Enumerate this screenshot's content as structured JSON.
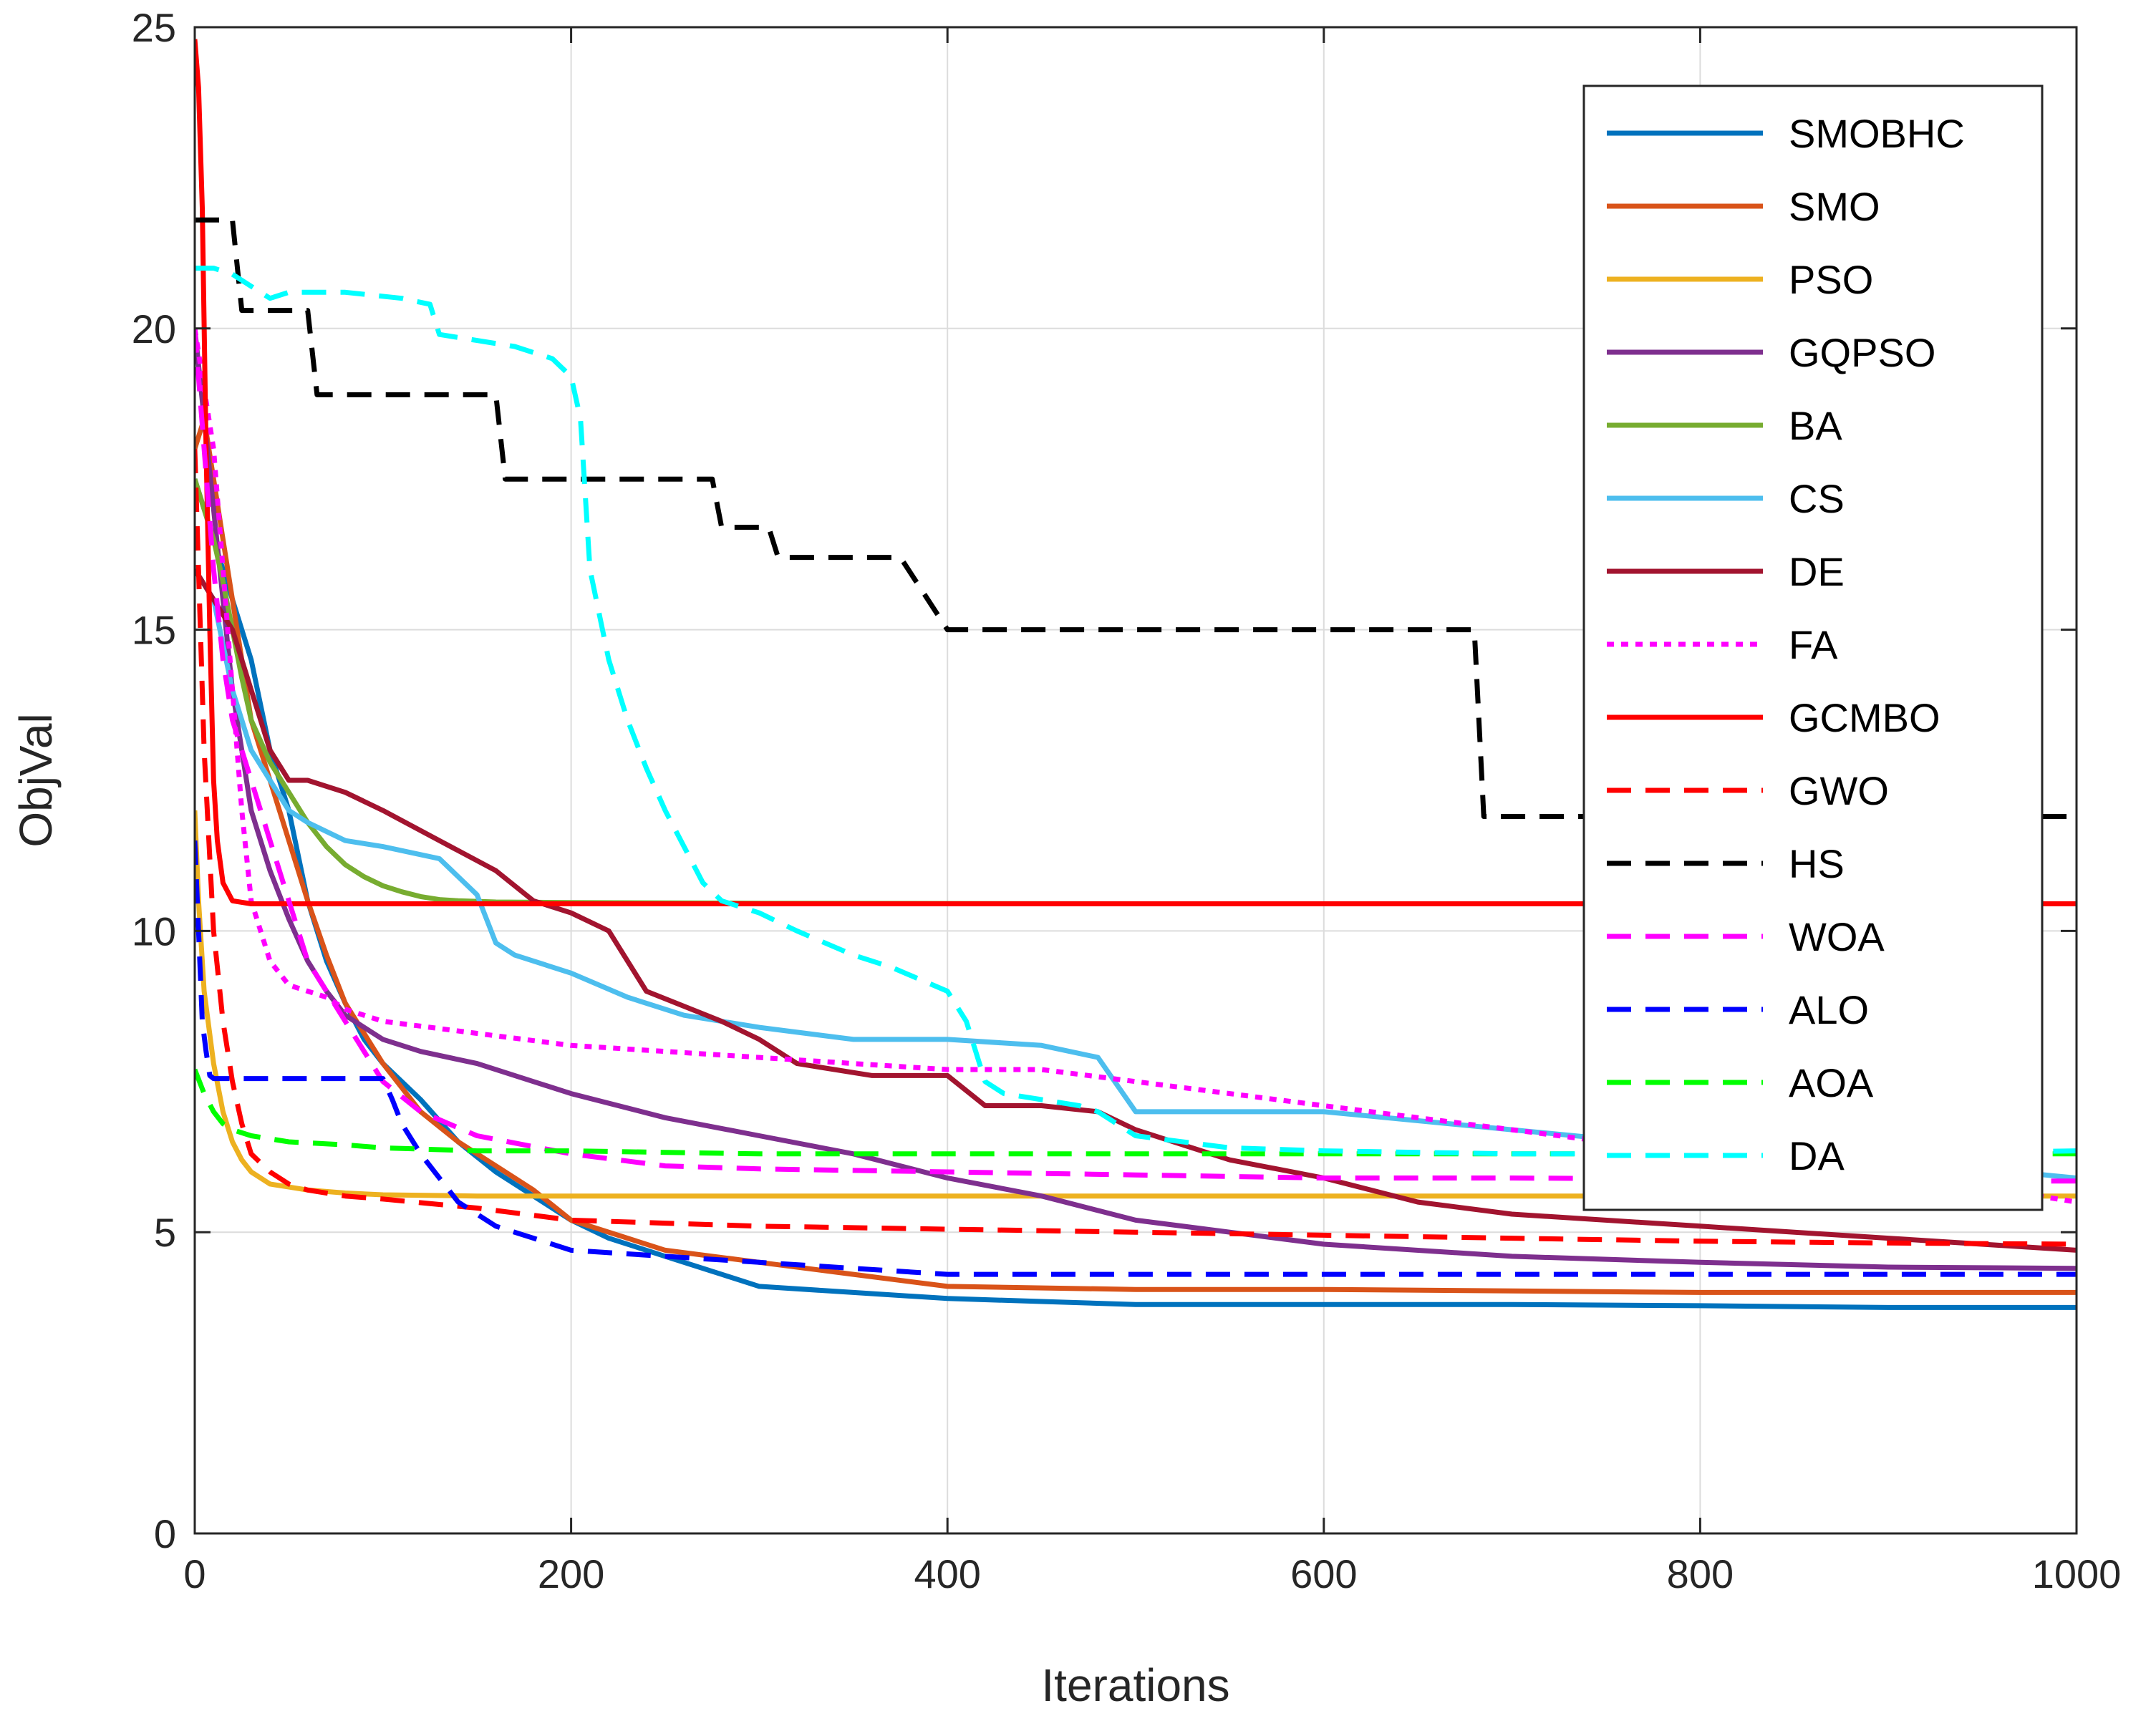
{
  "chart_data": {
    "type": "line",
    "title": "",
    "xlabel": "Iterations",
    "ylabel": "ObjVal",
    "xlim": [
      0,
      1000
    ],
    "ylim": [
      0,
      25
    ],
    "xticks": [
      0,
      200,
      400,
      600,
      800,
      1000
    ],
    "yticks": [
      0,
      5,
      10,
      15,
      20,
      25
    ],
    "grid": true,
    "legend_position": "top-right",
    "series": [
      {
        "name": "SMOBHC",
        "color": "#0072BD",
        "dash": "solid",
        "x": [
          0,
          5,
          10,
          15,
          20,
          25,
          30,
          40,
          50,
          60,
          70,
          80,
          90,
          100,
          120,
          140,
          160,
          180,
          200,
          220,
          250,
          280,
          300,
          350,
          400,
          450,
          500,
          600,
          700,
          800,
          900,
          1000
        ],
        "y": [
          17.5,
          17,
          16.5,
          16,
          15.5,
          15,
          14.5,
          13,
          12,
          10.5,
          9.5,
          8.8,
          8.2,
          7.8,
          7.2,
          6.5,
          6.0,
          5.6,
          5.2,
          4.9,
          4.6,
          4.3,
          4.1,
          4.0,
          3.9,
          3.85,
          3.8,
          3.8,
          3.8,
          3.78,
          3.75,
          3.75
        ]
      },
      {
        "name": "SMO",
        "color": "#D95319",
        "dash": "solid",
        "x": [
          0,
          5,
          10,
          15,
          20,
          25,
          30,
          40,
          50,
          60,
          70,
          80,
          100,
          120,
          140,
          160,
          170,
          180,
          200,
          250,
          300,
          350,
          400,
          500,
          600,
          800,
          1000
        ],
        "y": [
          18,
          18.5,
          17.5,
          16.5,
          15.5,
          14.5,
          13.5,
          12.5,
          11.5,
          10.5,
          9.6,
          8.8,
          7.8,
          7.0,
          6.5,
          6.1,
          5.9,
          5.7,
          5.2,
          4.7,
          4.5,
          4.3,
          4.1,
          4.05,
          4.05,
          4.0,
          4.0
        ]
      },
      {
        "name": "PSO",
        "color": "#EDB120",
        "dash": "solid",
        "x": [
          0,
          2,
          5,
          10,
          15,
          20,
          25,
          30,
          40,
          50,
          60,
          80,
          100,
          150,
          200,
          300,
          500,
          700,
          1000
        ],
        "y": [
          12,
          10.5,
          9.0,
          7.8,
          7.0,
          6.5,
          6.2,
          6.0,
          5.8,
          5.75,
          5.7,
          5.65,
          5.62,
          5.6,
          5.6,
          5.6,
          5.6,
          5.6,
          5.6
        ]
      },
      {
        "name": "GQPSO",
        "color": "#7E2F8E",
        "dash": "solid",
        "x": [
          0,
          5,
          10,
          15,
          20,
          25,
          30,
          40,
          50,
          60,
          70,
          80,
          100,
          120,
          150,
          180,
          200,
          250,
          300,
          350,
          400,
          450,
          500,
          550,
          600,
          700,
          800,
          900,
          1000
        ],
        "y": [
          20,
          18.5,
          17,
          15.5,
          14,
          13,
          12,
          11,
          10.2,
          9.5,
          9.0,
          8.6,
          8.2,
          8.0,
          7.8,
          7.5,
          7.3,
          6.9,
          6.6,
          6.3,
          5.9,
          5.6,
          5.2,
          5.0,
          4.8,
          4.6,
          4.5,
          4.42,
          4.4
        ]
      },
      {
        "name": "BA",
        "color": "#77AC30",
        "dash": "solid",
        "x": [
          0,
          5,
          10,
          15,
          20,
          25,
          30,
          40,
          50,
          60,
          70,
          80,
          90,
          100,
          110,
          120,
          130,
          140,
          160,
          200,
          300,
          500,
          1000
        ],
        "y": [
          17.5,
          17,
          16.5,
          15.8,
          15.0,
          14.2,
          13.5,
          12.8,
          12.3,
          11.8,
          11.4,
          11.1,
          10.9,
          10.75,
          10.65,
          10.57,
          10.52,
          10.5,
          10.48,
          10.47,
          10.46,
          10.45,
          10.45
        ]
      },
      {
        "name": "CS",
        "color": "#4DBEEE",
        "dash": "solid",
        "x": [
          0,
          10,
          20,
          30,
          40,
          50,
          60,
          80,
          100,
          130,
          150,
          160,
          170,
          200,
          230,
          260,
          300,
          350,
          400,
          450,
          480,
          500,
          550,
          600,
          700,
          800,
          900,
          1000
        ],
        "y": [
          16,
          15.5,
          14,
          13,
          12.5,
          12.0,
          11.8,
          11.5,
          11.4,
          11.2,
          10.6,
          9.8,
          9.6,
          9.3,
          8.9,
          8.6,
          8.4,
          8.2,
          8.2,
          8.1,
          7.9,
          7.0,
          7.0,
          7.0,
          6.7,
          6.4,
          6.2,
          5.9
        ]
      },
      {
        "name": "DE",
        "color": "#A2142F",
        "dash": "solid",
        "x": [
          0,
          10,
          20,
          30,
          40,
          50,
          60,
          80,
          100,
          130,
          160,
          180,
          200,
          220,
          240,
          280,
          300,
          320,
          360,
          400,
          420,
          450,
          480,
          500,
          550,
          600,
          650,
          700,
          800,
          900,
          1000
        ],
        "y": [
          16,
          15.5,
          15.0,
          14.0,
          13.0,
          12.5,
          12.5,
          12.3,
          12.0,
          11.5,
          11.0,
          10.5,
          10.3,
          10.0,
          9.0,
          8.5,
          8.2,
          7.8,
          7.6,
          7.6,
          7.1,
          7.1,
          7.0,
          6.7,
          6.2,
          5.9,
          5.5,
          5.3,
          5.1,
          4.9,
          4.7
        ]
      },
      {
        "name": "FA",
        "color": "#FF00FF",
        "dash": "dotted",
        "x": [
          0,
          5,
          10,
          15,
          20,
          25,
          30,
          40,
          50,
          60,
          70,
          80,
          100,
          150,
          200,
          250,
          300,
          350,
          400,
          450,
          500,
          550,
          600,
          700,
          800,
          900,
          1000
        ],
        "y": [
          20,
          19,
          18,
          16,
          14,
          12,
          10.5,
          9.5,
          9.1,
          9.0,
          8.9,
          8.7,
          8.5,
          8.3,
          8.1,
          8.0,
          7.9,
          7.8,
          7.7,
          7.7,
          7.5,
          7.3,
          7.1,
          6.7,
          6.3,
          6.0,
          5.5
        ]
      },
      {
        "name": "GCMBO",
        "color": "#FF0000",
        "dash": "solid",
        "x": [
          0,
          2,
          4,
          6,
          8,
          10,
          12,
          15,
          20,
          30,
          100,
          300,
          500,
          1000
        ],
        "y": [
          24.8,
          24,
          22,
          18,
          15,
          12.5,
          11.5,
          10.8,
          10.5,
          10.45,
          10.45,
          10.45,
          10.45,
          10.45
        ]
      },
      {
        "name": "GWO",
        "color": "#FF0000",
        "dash": "dashed",
        "x": [
          0,
          5,
          10,
          15,
          20,
          25,
          30,
          40,
          50,
          60,
          80,
          100,
          150,
          200,
          250,
          300,
          400,
          500,
          600,
          700,
          800,
          900,
          1000
        ],
        "y": [
          18,
          13,
          10,
          8.5,
          7.5,
          6.8,
          6.3,
          6.0,
          5.8,
          5.7,
          5.6,
          5.55,
          5.4,
          5.2,
          5.15,
          5.1,
          5.05,
          5.0,
          4.95,
          4.9,
          4.85,
          4.82,
          4.8
        ]
      },
      {
        "name": "HS",
        "color": "#000000",
        "dash": "dashed",
        "step": true,
        "x": [
          0,
          20,
          25,
          60,
          65,
          160,
          165,
          275,
          280,
          305,
          310,
          375,
          400,
          680,
          685,
          1000
        ],
        "y": [
          21.8,
          21.8,
          20.3,
          20.3,
          18.9,
          18.9,
          17.5,
          17.5,
          16.7,
          16.7,
          16.2,
          16.2,
          15.0,
          15.0,
          11.9,
          11.9
        ]
      },
      {
        "name": "WOA",
        "color": "#FF00FF",
        "dash": "dashed",
        "x": [
          0,
          5,
          10,
          15,
          20,
          30,
          40,
          50,
          60,
          70,
          80,
          100,
          120,
          150,
          200,
          250,
          300,
          400,
          500,
          600,
          700,
          800,
          900,
          1000
        ],
        "y": [
          20,
          18,
          16,
          14.5,
          13.5,
          12.5,
          11.5,
          10.5,
          9.5,
          9.0,
          8.5,
          7.5,
          7.0,
          6.6,
          6.3,
          6.1,
          6.05,
          6.0,
          5.95,
          5.9,
          5.9,
          5.88,
          5.85,
          5.85
        ]
      },
      {
        "name": "ALO",
        "color": "#0000FF",
        "dash": "dashed",
        "x": [
          0,
          2,
          4,
          6,
          8,
          10,
          20,
          40,
          60,
          80,
          100,
          105,
          110,
          120,
          130,
          140,
          150,
          160,
          180,
          200,
          250,
          300,
          400,
          500,
          700,
          1000
        ],
        "y": [
          11.5,
          10.0,
          8.5,
          8.0,
          7.6,
          7.55,
          7.55,
          7.55,
          7.55,
          7.55,
          7.55,
          7.2,
          6.8,
          6.3,
          5.9,
          5.5,
          5.3,
          5.1,
          4.9,
          4.7,
          4.6,
          4.5,
          4.3,
          4.3,
          4.3,
          4.3
        ]
      },
      {
        "name": "AOA",
        "color": "#00FF00",
        "dash": "dashed",
        "x": [
          0,
          5,
          10,
          15,
          20,
          30,
          50,
          80,
          100,
          150,
          200,
          300,
          500,
          700,
          1000
        ],
        "y": [
          7.7,
          7.3,
          7.0,
          6.8,
          6.7,
          6.6,
          6.5,
          6.45,
          6.4,
          6.35,
          6.35,
          6.3,
          6.3,
          6.3,
          6.3
        ]
      },
      {
        "name": "DA",
        "color": "#00FFFF",
        "dash": "dashed",
        "x": [
          0,
          10,
          20,
          30,
          40,
          50,
          80,
          110,
          125,
          130,
          150,
          170,
          190,
          200,
          205,
          210,
          220,
          230,
          240,
          250,
          260,
          270,
          280,
          300,
          320,
          350,
          370,
          400,
          410,
          420,
          430,
          450,
          470,
          480,
          500,
          550,
          600,
          700,
          800,
          900,
          1000
        ],
        "y": [
          21,
          21,
          20.9,
          20.7,
          20.5,
          20.6,
          20.6,
          20.5,
          20.4,
          19.9,
          19.8,
          19.7,
          19.5,
          19.2,
          18.5,
          16.0,
          14.5,
          13.5,
          12.7,
          12.0,
          11.4,
          10.8,
          10.5,
          10.3,
          10.0,
          9.6,
          9.4,
          9.0,
          8.5,
          7.5,
          7.3,
          7.2,
          7.1,
          7.0,
          6.6,
          6.4,
          6.35,
          6.3,
          6.3,
          6.3,
          6.35
        ]
      }
    ]
  }
}
